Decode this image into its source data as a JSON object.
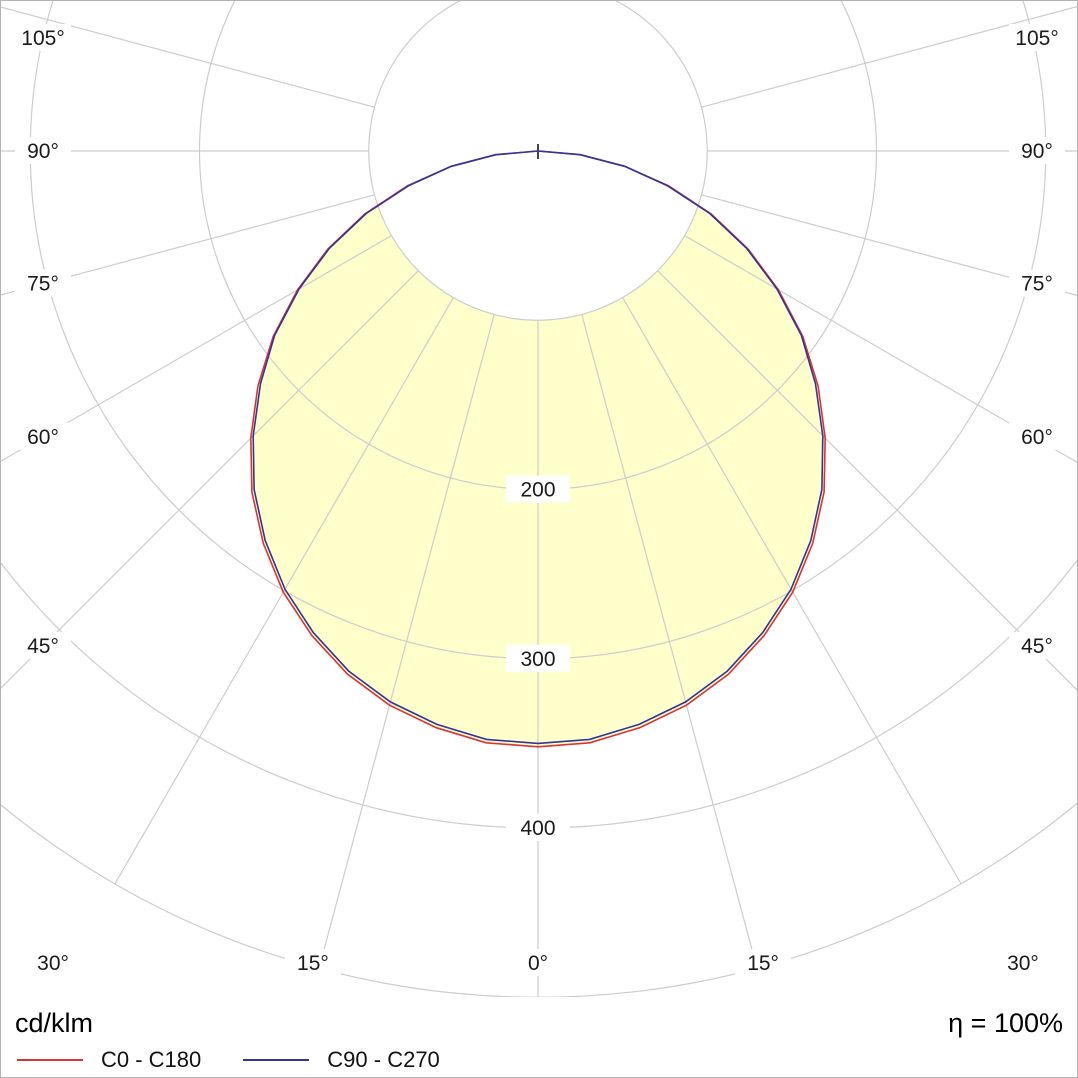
{
  "footer": {
    "unit_label": "cd/klm",
    "efficiency_label": "η = 100%"
  },
  "legend": [
    {
      "label": "C0 - C180",
      "color": "#d83434"
    },
    {
      "label": "C90 - C270",
      "color": "#333399"
    }
  ],
  "chart_data": {
    "type": "line",
    "layout": "polar photometric luminous intensity distribution, 0° at nadir, grid every 15°",
    "units": "cd/klm",
    "efficiency": "η = 100%",
    "gamma_deg": [
      0,
      5,
      10,
      15,
      20,
      25,
      30,
      35,
      40,
      45,
      50,
      55,
      60,
      65,
      70,
      75,
      80,
      85,
      90
    ],
    "series": [
      {
        "name": "C0 - C180",
        "color": "#d83434",
        "values": [
          352,
          351,
          346,
          339,
          329,
          316,
          301,
          283,
          263,
          240,
          216,
          191,
          164,
          137,
          109,
          80,
          52,
          25,
          0
        ]
      },
      {
        "name": "C90 - C270",
        "color": "#333399",
        "values": [
          350,
          349,
          344,
          337,
          327,
          314,
          299,
          281,
          261,
          238,
          214,
          190,
          163,
          136,
          108,
          79,
          52,
          25,
          0
        ]
      }
    ],
    "radial_ticks": [
      100,
      200,
      300,
      400,
      500
    ],
    "radial_tick_labels": [
      "200",
      "300",
      "400"
    ],
    "angle_labels": [
      "0°",
      "15°",
      "30°",
      "45°",
      "60°",
      "75°",
      "90°",
      "105°"
    ],
    "grid": true,
    "grid_color": "#cccccc",
    "fill_color": "#ffffcc",
    "rlim": [
      0,
      500
    ]
  }
}
